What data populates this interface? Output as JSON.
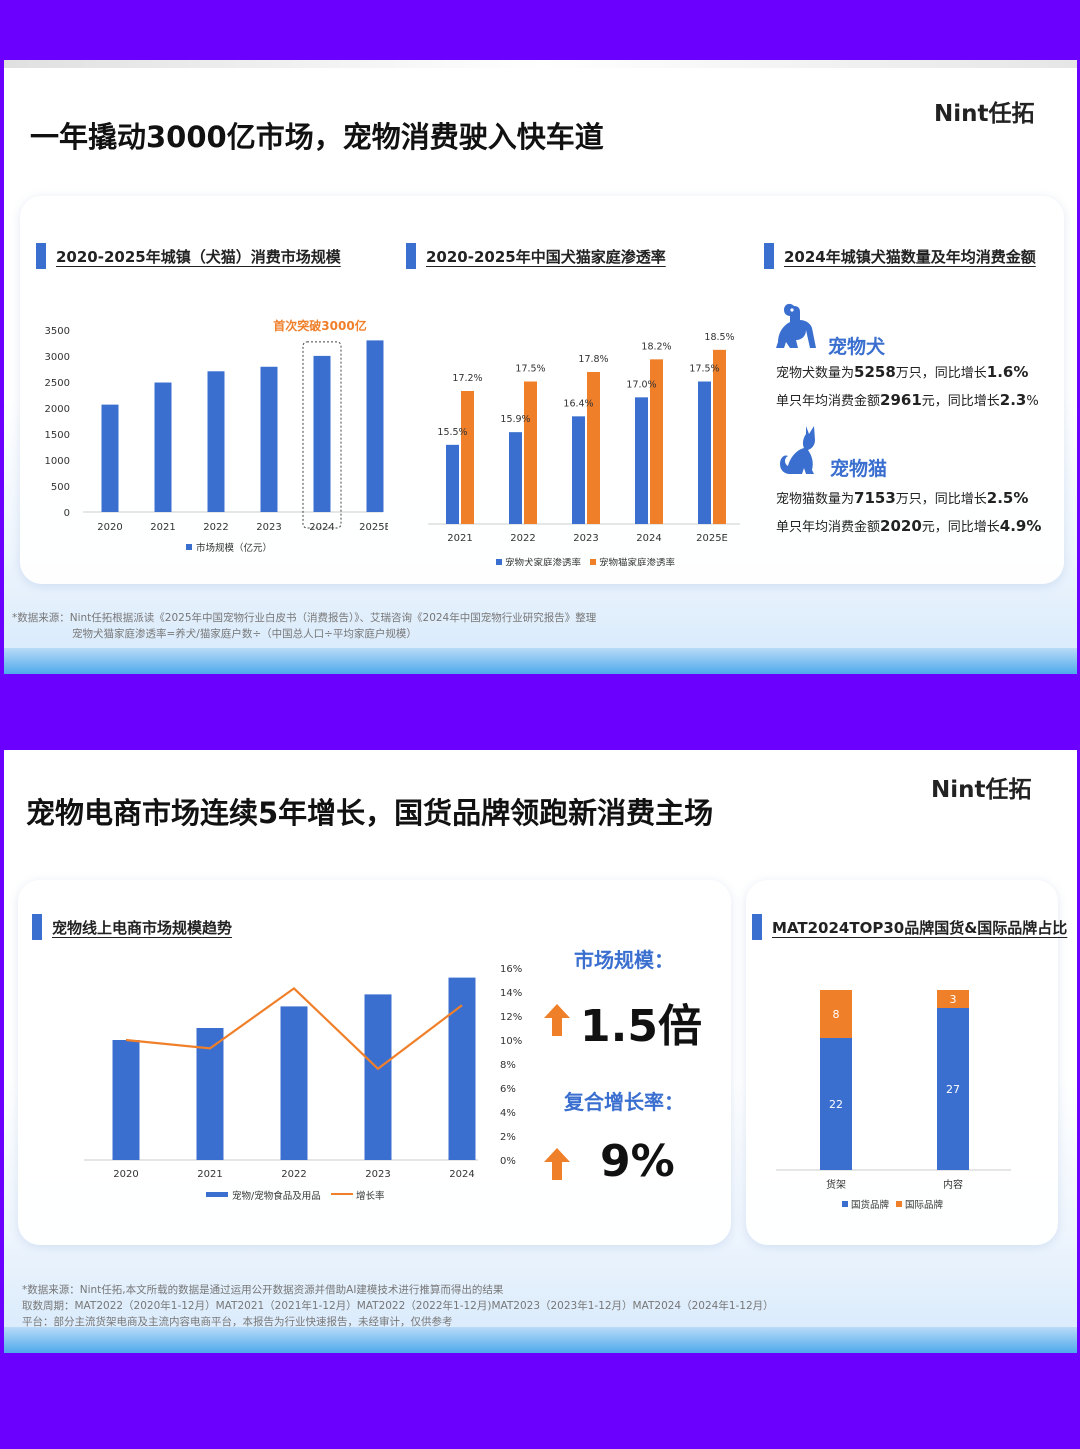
{
  "slide1": {
    "brand": "Nint任拓",
    "title": "一年撬动3000亿市场，宠物消费驶入快车道",
    "chart1": {
      "heading": "2020-2025年城镇（犬猫）消费市场规模",
      "annotation": "首次突破3000亿",
      "legend": "市场规模（亿元）"
    },
    "chart2": {
      "heading": "2020-2025年中国犬猫家庭渗透率",
      "legend_dog": "宠物犬家庭渗透率",
      "legend_cat": "宠物猫家庭渗透率"
    },
    "chart3": {
      "heading": "2024年城镇犬猫数量及年均消费金额",
      "dog_title": "宠物犬",
      "dog_line1_a": "宠物犬数量为",
      "dog_line1_b": "5258",
      "dog_line1_c": "万只，同比增长",
      "dog_line1_d": "1.6%",
      "dog_line2_a": "单只年均消费金额",
      "dog_line2_b": "2961",
      "dog_line2_c": "元，同比增长",
      "dog_line2_d": "2.3",
      "dog_line2_e": "%",
      "cat_title": "宠物猫",
      "cat_line1_a": "宠物猫数量为",
      "cat_line1_b": "7153",
      "cat_line1_c": "万只，同比增长",
      "cat_line1_d": "2.5%",
      "cat_line2_a": "单只年均消费金额",
      "cat_line2_b": "2020",
      "cat_line2_c": "元，同比增长",
      "cat_line2_d": "4.9%"
    },
    "source_line1": "*数据来源：Nint任拓根据派读《2025年中国宠物行业白皮书（消费报告）》、艾瑞咨询《2024年中国宠物行业研究报告》整理",
    "source_line2": "宠物犬猫家庭渗透率=养犬/猫家庭户数÷（中国总人口÷平均家庭户规模）"
  },
  "slide2": {
    "brand": "Nint任拓",
    "title": "宠物电商市场连续5年增长，国货品牌领跑新消费主场",
    "left_heading": "宠物线上电商市场规模趋势",
    "legend_bar": "宠物/宠物食品及用品",
    "legend_line": "增长率",
    "stat1_label": "市场规模：",
    "stat1_value": "1.5倍",
    "stat2_label": "复合增长率：",
    "stat2_value": "9%",
    "right_heading": "MAT2024TOP30品牌国货&国际品牌占比",
    "legend_domestic": "国货品牌",
    "legend_intl": "国际品牌",
    "source_line1": "*数据来源：Nint任拓,本文所载的数据是通过运用公开数据资源并借助AI建模技术进行推算而得出的结果",
    "source_line2": "取数周期：MAT2022（2020年1-12月）MAT2021（2021年1-12月）MAT2022（2022年1-12月)MAT2023（2023年1-12月）MAT2024（2024年1-12月）",
    "source_line3": "平台：部分主流货架电商及主流内容电商平台，本报告为行业快速报告，未经审计，仅供参考"
  },
  "colors": {
    "blue": "#3a6fd0",
    "orange": "#f07f2a",
    "accent_purple": "#6b00ff"
  },
  "chart_data": [
    {
      "type": "bar",
      "categories": [
        "2020",
        "2021",
        "2022",
        "2023",
        "2024",
        "2025E"
      ],
      "series": [
        {
          "name": "市场规模（亿元）",
          "values": [
            2065,
            2490,
            2706,
            2793,
            3002,
            3300
          ]
        }
      ],
      "ylim": [
        0,
        3500
      ],
      "yticks": [
        0,
        500,
        1000,
        1500,
        2000,
        2500,
        3000,
        3500
      ],
      "highlight": "2024",
      "annotation": "首次突破3000亿",
      "legend": "bottom"
    },
    {
      "type": "bar",
      "categories": [
        "2021",
        "2022",
        "2023",
        "2024",
        "2025E"
      ],
      "series": [
        {
          "name": "宠物犬家庭渗透率",
          "values": [
            15.5,
            15.9,
            16.4,
            17.0,
            17.5
          ],
          "labels": [
            "15.5%",
            "15.9%",
            "16.4%",
            "17.0%",
            "17.5%"
          ]
        },
        {
          "name": "宠物猫家庭渗透率",
          "values": [
            17.2,
            17.5,
            17.8,
            18.2,
            18.5
          ],
          "labels": [
            "17.2%",
            "17.5%",
            "17.8%",
            "18.2%",
            "18.5%"
          ]
        }
      ],
      "legend": "bottom"
    },
    {
      "type": "bar",
      "categories": [
        "2020",
        "2021",
        "2022",
        "2023",
        "2024"
      ],
      "series": [
        {
          "name": "宠物/宠物食品及用品",
          "values": [
            1.0,
            1.1,
            1.28,
            1.38,
            1.52
          ]
        },
        {
          "name": "增长率",
          "type": "line",
          "values": [
            10.0,
            9.3,
            14.3,
            7.6,
            12.9
          ]
        }
      ],
      "y2ticks": [
        "16%",
        "14%",
        "12%",
        "10%",
        "8%",
        "6%",
        "4%",
        "2%",
        "0%"
      ],
      "y2lim": [
        0,
        16
      ],
      "legend": "bottom"
    },
    {
      "type": "bar",
      "stacked": true,
      "categories": [
        "货架",
        "内容"
      ],
      "series": [
        {
          "name": "国货品牌",
          "values": [
            22,
            27
          ]
        },
        {
          "name": "国际品牌",
          "values": [
            8,
            3
          ]
        }
      ],
      "legend": "bottom"
    }
  ]
}
